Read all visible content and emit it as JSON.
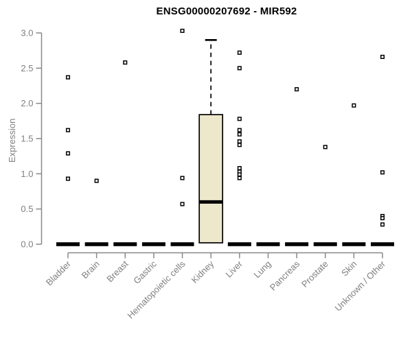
{
  "chart_data": {
    "type": "boxplot",
    "title": "ENSG00000207692 - MIR592",
    "xlabel": "",
    "ylabel": "Expression",
    "ylim": [
      0,
      3
    ],
    "yticks": [
      0.0,
      0.5,
      1.0,
      1.5,
      2.0,
      2.5,
      3.0
    ],
    "ytick_labels": [
      "0.0",
      "0.5",
      "1.0",
      "1.5",
      "2.0",
      "2.5",
      "3.0"
    ],
    "grid": "off",
    "legend": "none",
    "categories": [
      "Bladder",
      "Brain",
      "Breast",
      "Gastric",
      "Hematopoietic cells",
      "Kidney",
      "Liver",
      "Lung",
      "Pancreas",
      "Prostate",
      "Skin",
      "Unknown / Other"
    ],
    "boxes": [
      {
        "category": "Bladder",
        "q1": 0,
        "median": 0,
        "q3": 0,
        "whisker_low": 0,
        "whisker_high": 0,
        "outliers": [
          2.37,
          1.62,
          1.29,
          0.93
        ]
      },
      {
        "category": "Brain",
        "q1": 0,
        "median": 0,
        "q3": 0,
        "whisker_low": 0,
        "whisker_high": 0,
        "outliers": [
          0.9
        ]
      },
      {
        "category": "Breast",
        "q1": 0,
        "median": 0,
        "q3": 0,
        "whisker_low": 0,
        "whisker_high": 0,
        "outliers": [
          2.58
        ]
      },
      {
        "category": "Gastric",
        "q1": 0,
        "median": 0,
        "q3": 0,
        "whisker_low": 0,
        "whisker_high": 0,
        "outliers": []
      },
      {
        "category": "Hematopoietic cells",
        "q1": 0,
        "median": 0,
        "q3": 0,
        "whisker_low": 0,
        "whisker_high": 0,
        "outliers": [
          3.03,
          0.94,
          0.57
        ]
      },
      {
        "category": "Kidney",
        "q1": 0.02,
        "median": 0.6,
        "q3": 1.84,
        "whisker_low": 0.02,
        "whisker_high": 2.9,
        "outliers": []
      },
      {
        "category": "Liver",
        "q1": 0,
        "median": 0,
        "q3": 0,
        "whisker_low": 0,
        "whisker_high": 0,
        "outliers": [
          2.72,
          2.5,
          1.78,
          1.62,
          1.56,
          1.46,
          1.41,
          1.08,
          1.03,
          0.99,
          0.94
        ]
      },
      {
        "category": "Lung",
        "q1": 0,
        "median": 0,
        "q3": 0,
        "whisker_low": 0,
        "whisker_high": 0,
        "outliers": []
      },
      {
        "category": "Pancreas",
        "q1": 0,
        "median": 0,
        "q3": 0,
        "whisker_low": 0,
        "whisker_high": 0,
        "outliers": [
          2.2
        ]
      },
      {
        "category": "Prostate",
        "q1": 0,
        "median": 0,
        "q3": 0,
        "whisker_low": 0,
        "whisker_high": 0,
        "outliers": [
          1.38
        ]
      },
      {
        "category": "Skin",
        "q1": 0,
        "median": 0,
        "q3": 0,
        "whisker_low": 0,
        "whisker_high": 0,
        "outliers": [
          1.97
        ]
      },
      {
        "category": "Unknown / Other",
        "q1": 0,
        "median": 0,
        "q3": 0,
        "whisker_low": 0,
        "whisker_high": 0,
        "outliers": [
          2.66,
          1.02,
          0.4,
          0.37,
          0.28
        ]
      }
    ],
    "colors": {
      "box_fill": "#EDE8CC",
      "box_border": "#000000",
      "median": "#000000",
      "outlier_stroke": "#000000",
      "outlier_fill": "#ffffff",
      "axis": "#888888",
      "tick_label": "#7f7f7f",
      "title": "#000000",
      "background": "#ffffff"
    }
  }
}
